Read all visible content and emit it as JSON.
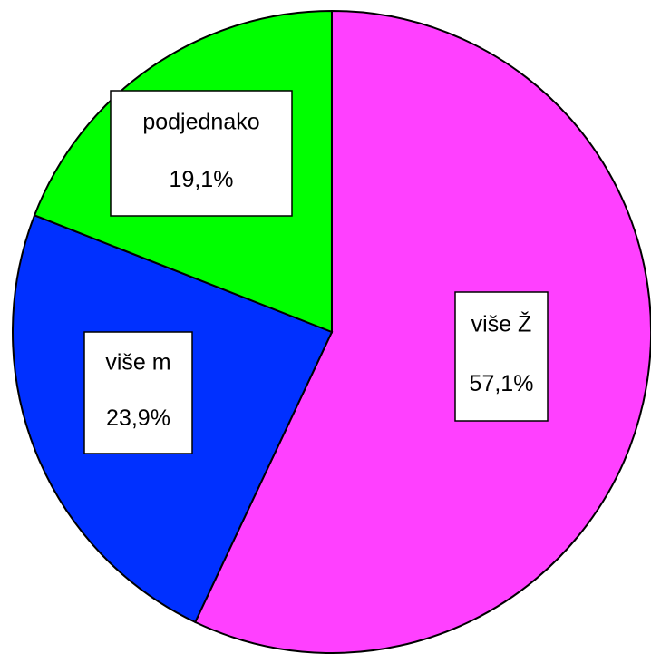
{
  "chart_data": {
    "type": "pie",
    "categories": [
      "više Ž",
      "više m",
      "podjednako"
    ],
    "values": [
      57.1,
      23.9,
      19.1
    ],
    "value_labels": [
      "57,1%",
      "23,9%",
      "19,1%"
    ],
    "colors": [
      "#ff40ff",
      "#0030ff",
      "#00ff00"
    ]
  }
}
